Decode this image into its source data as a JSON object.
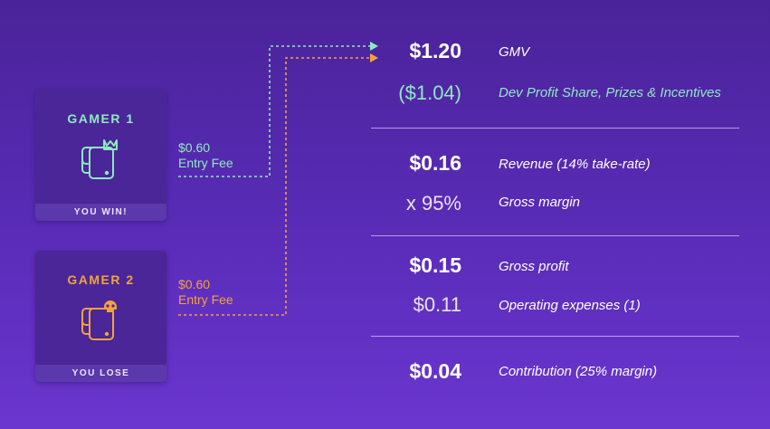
{
  "gamers": [
    {
      "title": "GAMER 1",
      "icon": "phone-crown-icon",
      "footer": "YOU WIN!",
      "fee_amount": "$0.60",
      "fee_label": "Entry Fee",
      "color": "#8ee9c1"
    },
    {
      "title": "GAMER 2",
      "icon": "phone-skull-icon",
      "footer": "YOU LOSE",
      "fee_amount": "$0.60",
      "fee_label": "Entry Fee",
      "color": "#f2a33c"
    }
  ],
  "breakdown": [
    {
      "amount": "$1.20",
      "label": "GMV"
    },
    {
      "amount": "($1.04)",
      "label": "Dev Profit Share, Prizes & Incentives"
    },
    {
      "amount": "$0.16",
      "label": "Revenue  (14% take-rate)"
    },
    {
      "amount": "x  95%",
      "label": "Gross margin"
    },
    {
      "amount": "$0.15",
      "label": "Gross profit"
    },
    {
      "amount": "$0.11",
      "label": "Operating expenses (1)"
    },
    {
      "amount": "$0.04",
      "label": "Contribution (25% margin)"
    }
  ],
  "colors": {
    "teal": "#8ee9c1",
    "orange": "#f2a33c",
    "background": "#5a2cb8"
  }
}
